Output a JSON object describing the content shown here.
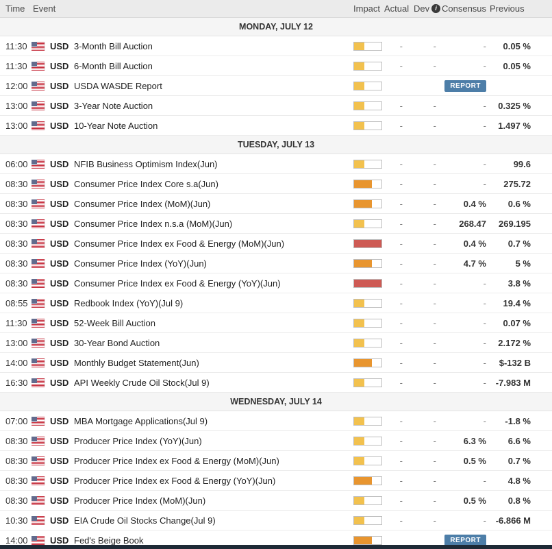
{
  "table": {
    "columns": {
      "time": "Time",
      "event": "Event",
      "impact": "Impact",
      "actual": "Actual",
      "dev": "Dev",
      "consensus": "Consensus",
      "previous": "Previous"
    },
    "dev_info_icon": "i"
  },
  "impact_colors": {
    "low": "#F2C14E",
    "medium": "#E8952F",
    "high": "#CE5A54"
  },
  "report_badge_color": "#4D7EA8",
  "sections": [
    {
      "title": "MONDAY, JULY 12",
      "rows": [
        {
          "time": "11:30",
          "currency": "USD",
          "event": "3-Month Bill Auction",
          "impact": "low",
          "actual": "-",
          "dev": "-",
          "consensus": "-",
          "previous": "0.05 %"
        },
        {
          "time": "11:30",
          "currency": "USD",
          "event": "6-Month Bill Auction",
          "impact": "low",
          "actual": "-",
          "dev": "-",
          "consensus": "-",
          "previous": "0.05 %"
        },
        {
          "time": "12:00",
          "currency": "USD",
          "event": "USDA WASDE Report",
          "impact": "low",
          "actual": "",
          "dev": "",
          "consensus_badge": "REPORT",
          "previous": ""
        },
        {
          "time": "13:00",
          "currency": "USD",
          "event": "3-Year Note Auction",
          "impact": "low",
          "actual": "-",
          "dev": "-",
          "consensus": "-",
          "previous": "0.325 %"
        },
        {
          "time": "13:00",
          "currency": "USD",
          "event": "10-Year Note Auction",
          "impact": "low",
          "actual": "-",
          "dev": "-",
          "consensus": "-",
          "previous": "1.497 %"
        }
      ]
    },
    {
      "title": "TUESDAY, JULY 13",
      "rows": [
        {
          "time": "06:00",
          "currency": "USD",
          "event": "NFIB Business Optimism Index(Jun)",
          "impact": "low",
          "actual": "-",
          "dev": "-",
          "consensus": "-",
          "previous": "99.6"
        },
        {
          "time": "08:30",
          "currency": "USD",
          "event": "Consumer Price Index Core s.a(Jun)",
          "impact": "medium",
          "actual": "-",
          "dev": "-",
          "consensus": "-",
          "previous": "275.72"
        },
        {
          "time": "08:30",
          "currency": "USD",
          "event": "Consumer Price Index (MoM)(Jun)",
          "impact": "medium",
          "actual": "-",
          "dev": "-",
          "consensus": "0.4 %",
          "previous": "0.6 %"
        },
        {
          "time": "08:30",
          "currency": "USD",
          "event": "Consumer Price Index n.s.a (MoM)(Jun)",
          "impact": "low",
          "actual": "-",
          "dev": "-",
          "consensus": "268.47",
          "previous": "269.195"
        },
        {
          "time": "08:30",
          "currency": "USD",
          "event": "Consumer Price Index ex Food & Energy (MoM)(Jun)",
          "impact": "high",
          "actual": "-",
          "dev": "-",
          "consensus": "0.4 %",
          "previous": "0.7 %"
        },
        {
          "time": "08:30",
          "currency": "USD",
          "event": "Consumer Price Index (YoY)(Jun)",
          "impact": "medium",
          "actual": "-",
          "dev": "-",
          "consensus": "4.7 %",
          "previous": "5 %"
        },
        {
          "time": "08:30",
          "currency": "USD",
          "event": "Consumer Price Index ex Food & Energy (YoY)(Jun)",
          "impact": "high",
          "actual": "-",
          "dev": "-",
          "consensus": "-",
          "previous": "3.8 %"
        },
        {
          "time": "08:55",
          "currency": "USD",
          "event": "Redbook Index (YoY)(Jul 9)",
          "impact": "low",
          "actual": "-",
          "dev": "-",
          "consensus": "-",
          "previous": "19.4 %"
        },
        {
          "time": "11:30",
          "currency": "USD",
          "event": "52-Week Bill Auction",
          "impact": "low",
          "actual": "-",
          "dev": "-",
          "consensus": "-",
          "previous": "0.07 %"
        },
        {
          "time": "13:00",
          "currency": "USD",
          "event": "30-Year Bond Auction",
          "impact": "low",
          "actual": "-",
          "dev": "-",
          "consensus": "-",
          "previous": "2.172 %"
        },
        {
          "time": "14:00",
          "currency": "USD",
          "event": "Monthly Budget Statement(Jun)",
          "impact": "medium",
          "actual": "-",
          "dev": "-",
          "consensus": "-",
          "previous": "$-132 B"
        },
        {
          "time": "16:30",
          "currency": "USD",
          "event": "API Weekly Crude Oil Stock(Jul 9)",
          "impact": "low",
          "actual": "-",
          "dev": "-",
          "consensus": "-",
          "previous": "-7.983 M"
        }
      ]
    },
    {
      "title": "WEDNESDAY, JULY 14",
      "rows": [
        {
          "time": "07:00",
          "currency": "USD",
          "event": "MBA Mortgage Applications(Jul 9)",
          "impact": "low",
          "actual": "-",
          "dev": "-",
          "consensus": "-",
          "previous": "-1.8 %"
        },
        {
          "time": "08:30",
          "currency": "USD",
          "event": "Producer Price Index (YoY)(Jun)",
          "impact": "low",
          "actual": "-",
          "dev": "-",
          "consensus": "6.3 %",
          "previous": "6.6 %"
        },
        {
          "time": "08:30",
          "currency": "USD",
          "event": "Producer Price Index ex Food & Energy (MoM)(Jun)",
          "impact": "low",
          "actual": "-",
          "dev": "-",
          "consensus": "0.5 %",
          "previous": "0.7 %"
        },
        {
          "time": "08:30",
          "currency": "USD",
          "event": "Producer Price Index ex Food & Energy (YoY)(Jun)",
          "impact": "medium",
          "actual": "-",
          "dev": "-",
          "consensus": "-",
          "previous": "4.8 %"
        },
        {
          "time": "08:30",
          "currency": "USD",
          "event": "Producer Price Index (MoM)(Jun)",
          "impact": "low",
          "actual": "-",
          "dev": "-",
          "consensus": "0.5 %",
          "previous": "0.8 %"
        },
        {
          "time": "10:30",
          "currency": "USD",
          "event": "EIA Crude Oil Stocks Change(Jul 9)",
          "impact": "low",
          "actual": "-",
          "dev": "-",
          "consensus": "-",
          "previous": "-6.866 M"
        },
        {
          "time": "14:00",
          "currency": "USD",
          "event": "Fed's Beige Book",
          "impact": "medium",
          "actual": "",
          "dev": "",
          "consensus_badge": "REPORT",
          "previous": ""
        }
      ]
    }
  ]
}
